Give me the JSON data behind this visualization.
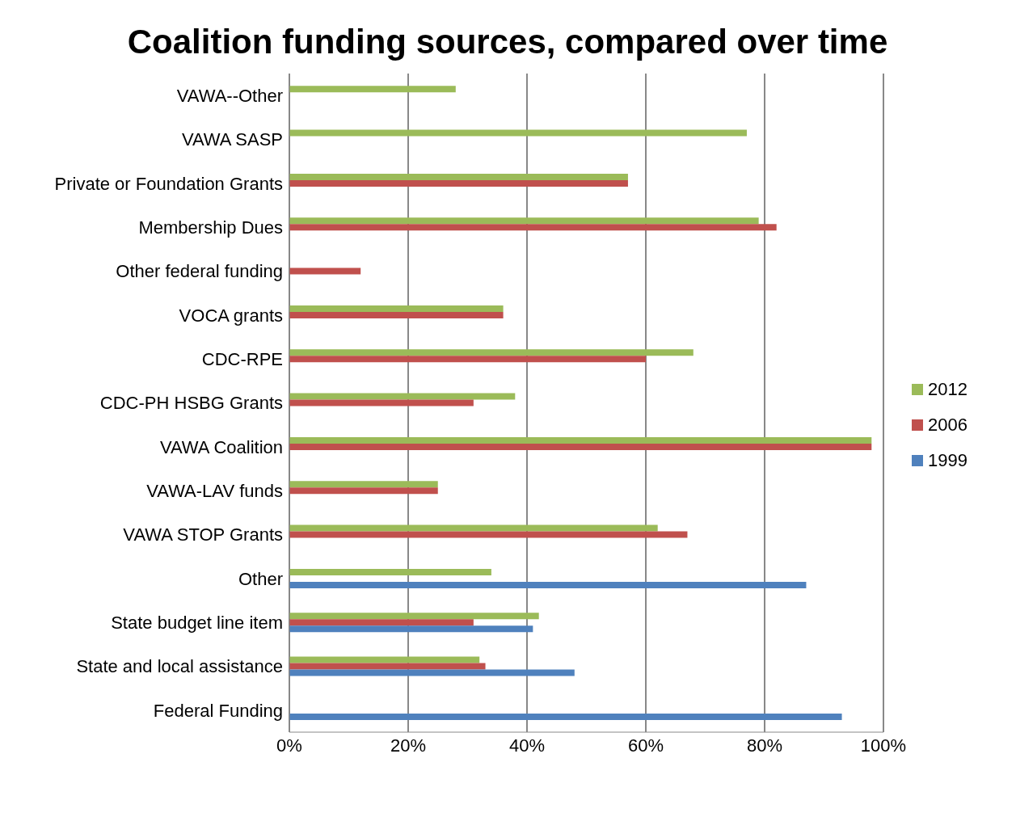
{
  "chart_data": {
    "type": "bar",
    "orientation": "horizontal",
    "title": "Coalition funding sources, compared over time",
    "categories": [
      "VAWA--Other",
      "VAWA SASP",
      "Private or Foundation Grants",
      "Membership Dues",
      "Other federal funding",
      "VOCA grants",
      "CDC-RPE",
      "CDC-PH HSBG Grants",
      "VAWA Coalition",
      "VAWA-LAV funds",
      "VAWA STOP Grants",
      "Other",
      "State budget line item",
      "State and local assistance",
      "Federal Funding"
    ],
    "series": [
      {
        "name": "2012",
        "color": "#9bbb59",
        "values": [
          28,
          77,
          57,
          79,
          null,
          36,
          68,
          38,
          98,
          25,
          62,
          34,
          42,
          32,
          null
        ]
      },
      {
        "name": "2006",
        "color": "#c0504d",
        "values": [
          null,
          null,
          57,
          82,
          12,
          36,
          60,
          31,
          98,
          25,
          67,
          null,
          31,
          33,
          null
        ]
      },
      {
        "name": "1999",
        "color": "#4f81bd",
        "values": [
          null,
          null,
          null,
          null,
          null,
          null,
          null,
          null,
          null,
          null,
          null,
          87,
          41,
          48,
          93
        ]
      }
    ],
    "xlim": [
      0,
      100
    ],
    "xticks": [
      {
        "value": 0,
        "label": "0%"
      },
      {
        "value": 20,
        "label": "20%"
      },
      {
        "value": 40,
        "label": "40%"
      },
      {
        "value": 60,
        "label": "60%"
      },
      {
        "value": 80,
        "label": "80%"
      },
      {
        "value": 100,
        "label": "100%"
      }
    ],
    "grid": "x",
    "legend": "right"
  }
}
